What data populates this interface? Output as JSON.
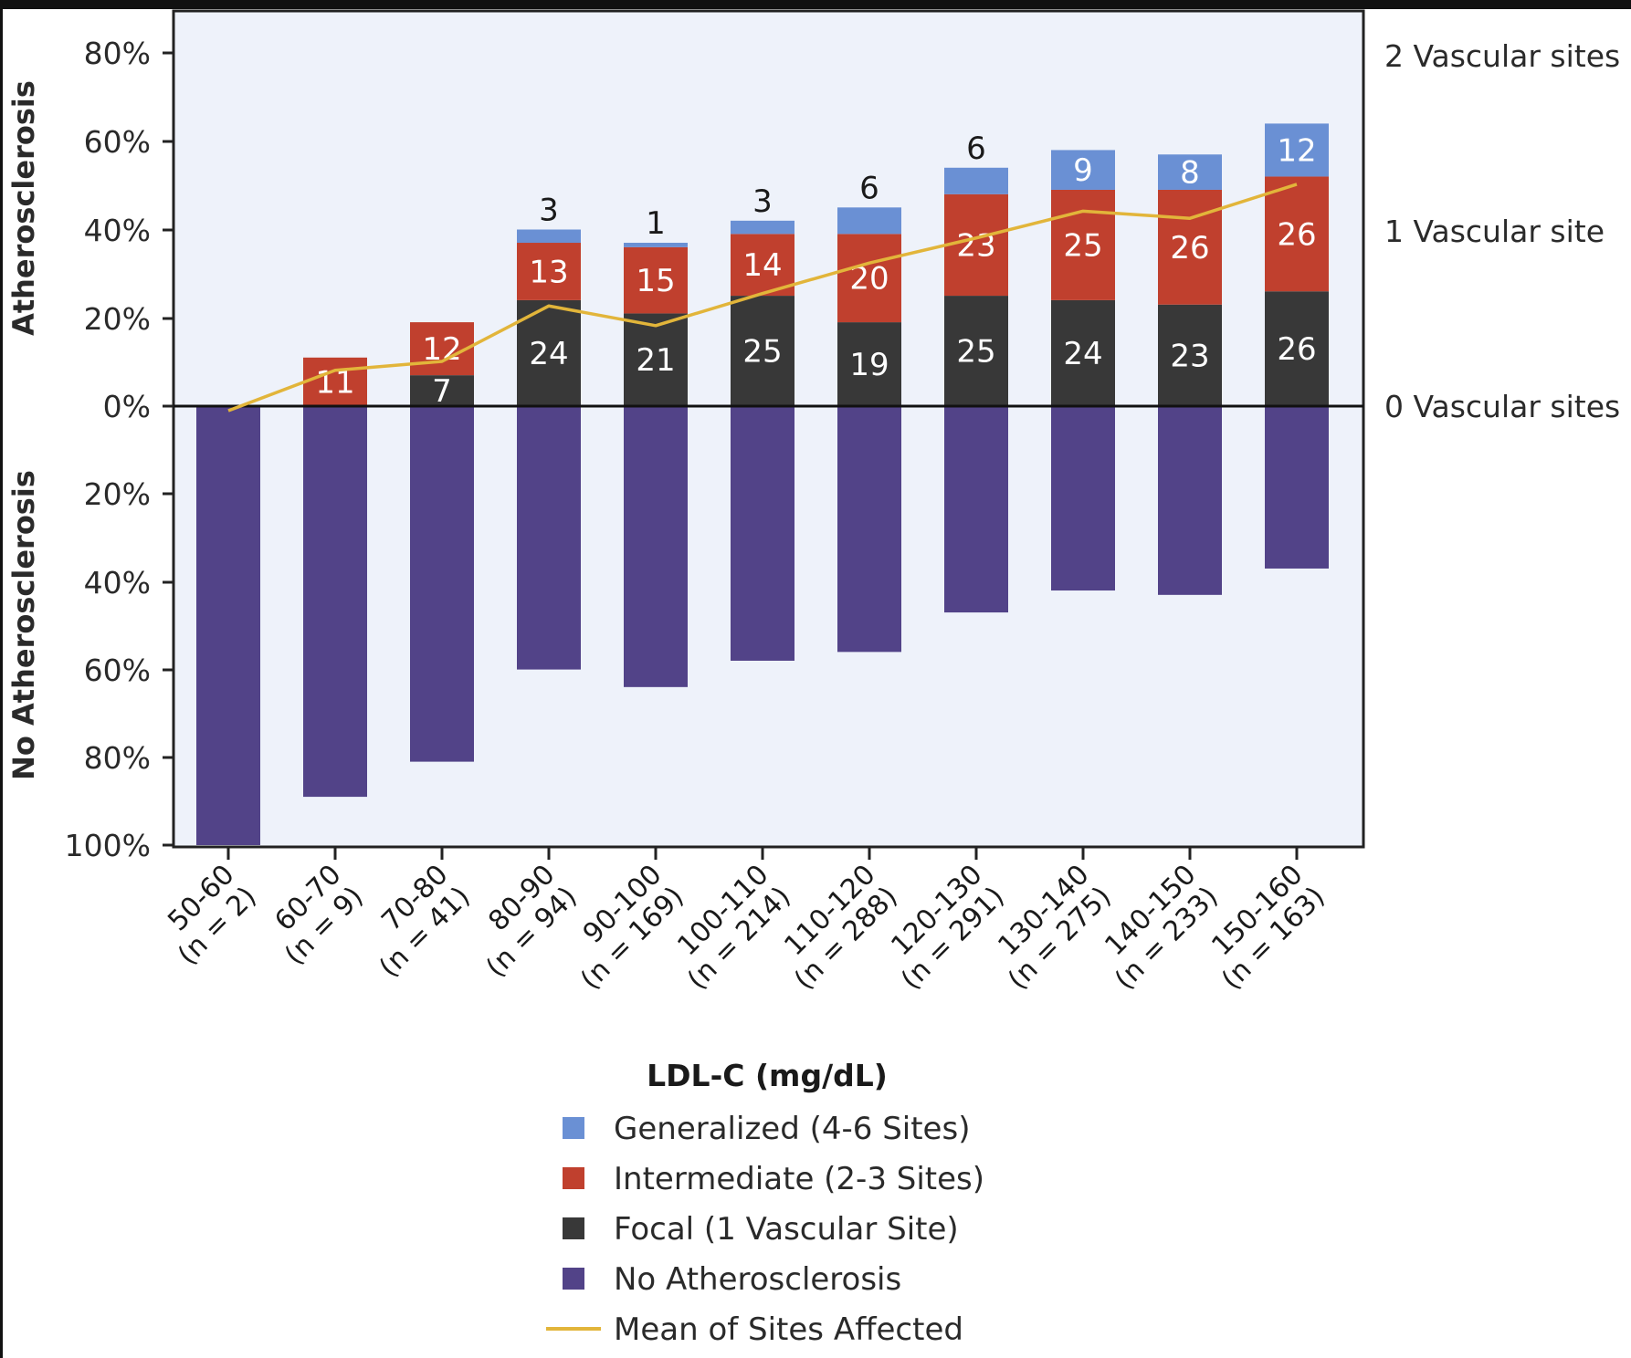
{
  "chart_data": {
    "type": "bar",
    "subtype": "diverging-stacked-bar-with-line",
    "title": "",
    "xlabel": "LDL-C (mg/dL)",
    "ylabel_upper": "Atherosclerosis",
    "ylabel_lower": "No Atherosclerosis",
    "y_ticks": [
      "80%",
      "60%",
      "40%",
      "20%",
      "0%",
      "20%",
      "40%",
      "60%",
      "80%",
      "100%"
    ],
    "ylim_upper": [
      0,
      80
    ],
    "ylim_lower": [
      0,
      100
    ],
    "right_axis": {
      "labels": [
        "2 Vascular sites",
        "1 Vascular site",
        "0 Vascular sites"
      ],
      "values": [
        2,
        1,
        0
      ]
    },
    "categories": [
      {
        "range": "50-60",
        "n": "(n = 2)"
      },
      {
        "range": "60-70",
        "n": "(n = 9)"
      },
      {
        "range": "70-80",
        "n": "(n = 41)"
      },
      {
        "range": "80-90",
        "n": "(n = 94)"
      },
      {
        "range": "90-100",
        "n": "(n = 169)"
      },
      {
        "range": "100-110",
        "n": "(n = 214)"
      },
      {
        "range": "110-120",
        "n": "(n = 288)"
      },
      {
        "range": "120-130",
        "n": "(n = 291)"
      },
      {
        "range": "130-140",
        "n": "(n = 275)"
      },
      {
        "range": "140-150",
        "n": "(n = 233)"
      },
      {
        "range": "150-160",
        "n": "(n = 163)"
      }
    ],
    "series": [
      {
        "name": "Focal (1 Vascular Site)",
        "key": "focal",
        "color": "#383838",
        "values": [
          0,
          0,
          7,
          24,
          21,
          25,
          19,
          25,
          24,
          23,
          26
        ],
        "labels": [
          "",
          "",
          "7",
          "24",
          "21",
          "25",
          "19",
          "25",
          "24",
          "23",
          "26"
        ]
      },
      {
        "name": "Intermediate (2-3 Sites)",
        "key": "intermediate",
        "color": "#c0402e",
        "values": [
          0,
          11,
          12,
          13,
          15,
          14,
          20,
          23,
          25,
          26,
          26
        ],
        "labels": [
          "",
          "11",
          "12",
          "13",
          "15",
          "14",
          "20",
          "23",
          "25",
          "26",
          "26"
        ]
      },
      {
        "name": "Generalized (4-6 Sites)",
        "key": "generalized",
        "color": "#6a90d4",
        "values": [
          0,
          0,
          0,
          3,
          1,
          3,
          6,
          6,
          9,
          8,
          12
        ],
        "labels": [
          "",
          "",
          "",
          "3",
          "1",
          "3",
          "6",
          "6",
          "9",
          "8",
          "12"
        ],
        "label_inside": [
          false,
          false,
          false,
          false,
          false,
          false,
          false,
          false,
          true,
          true,
          true
        ]
      },
      {
        "name": "No Atherosclerosis",
        "key": "none",
        "color": "#524388",
        "values": [
          100,
          89,
          81,
          60,
          64,
          58,
          56,
          47,
          42,
          43,
          37
        ]
      }
    ],
    "line": {
      "name": "Mean of Sites Affected",
      "color": "#e2b53a",
      "values": [
        0,
        0.2,
        0.25,
        0.56,
        0.45,
        0.63,
        0.8,
        0.94,
        1.09,
        1.05,
        1.24
      ]
    },
    "legend": {
      "placement": "bottom-center",
      "items": [
        {
          "label": "Generalized (4-6 Sites)",
          "color": "#6a90d4",
          "kind": "square"
        },
        {
          "label": "Intermediate (2-3 Sites)",
          "color": "#c0402e",
          "kind": "square"
        },
        {
          "label": "Focal (1 Vascular Site)",
          "color": "#383838",
          "kind": "square"
        },
        {
          "label": "No Atherosclerosis",
          "color": "#524388",
          "kind": "square"
        },
        {
          "label": "Mean of Sites Affected",
          "color": "#e2b53a",
          "kind": "line"
        }
      ]
    },
    "plot_background": "#eef2fa",
    "grid": false
  }
}
